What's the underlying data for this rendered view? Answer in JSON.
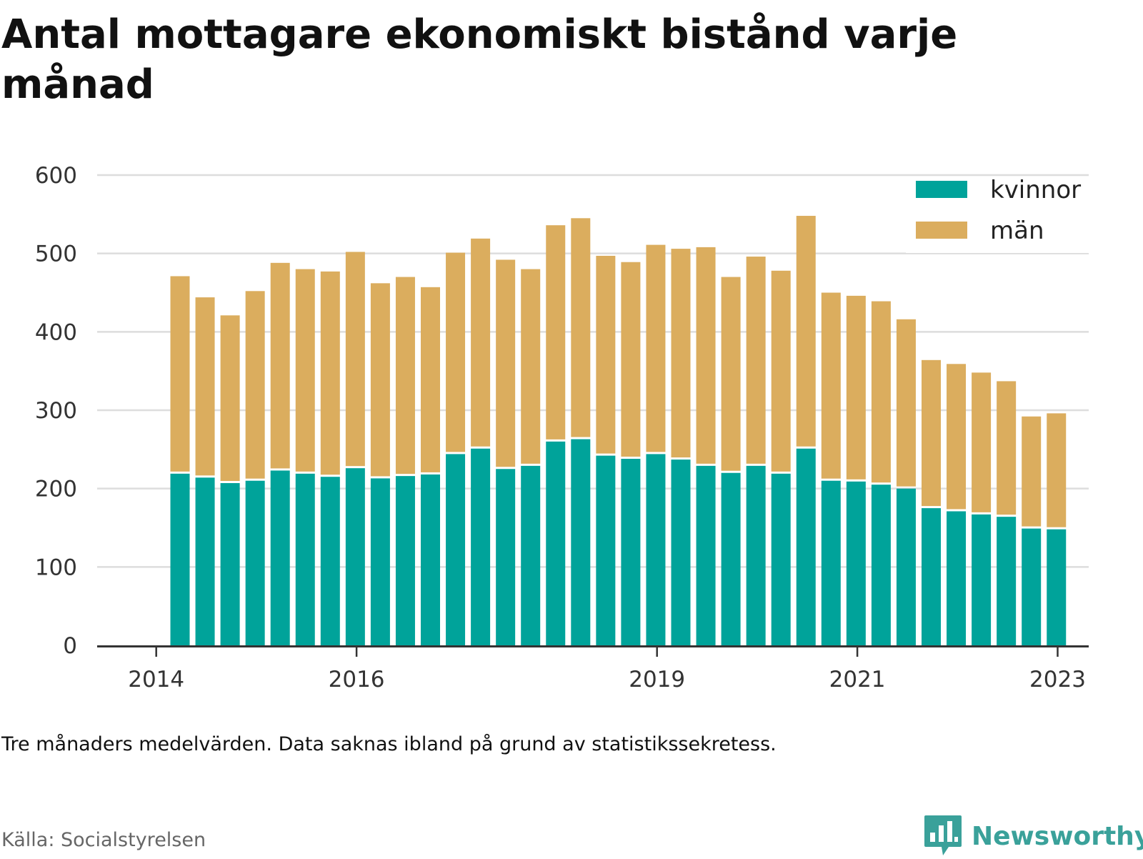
{
  "title": "Antal mottagare ekonomiskt bistånd varje månad",
  "note": "Tre månaders medelvärden. Data saknas ibland på grund av statistikssekretess.",
  "source": "Källa: Socialstyrelsen",
  "brand": {
    "name": "Newsworthy",
    "icon": "bar-chart-speech-bubble-icon",
    "color": "#3aa19a"
  },
  "colors": {
    "kvinnor": "#00a39a",
    "man": "#dbad5e",
    "grid": "#dddddd",
    "axis": "#333333"
  },
  "chart_data": {
    "type": "bar",
    "stacked": true,
    "x_tick_labels": [
      {
        "label": "2014",
        "at_bar": -0.95
      },
      {
        "label": "2016",
        "at_bar": 7.05
      },
      {
        "label": "2019",
        "at_bar": 19.05
      },
      {
        "label": "2021",
        "at_bar": 27.05
      },
      {
        "label": "2023",
        "at_bar": 35.05
      }
    ],
    "ylim": [
      0,
      600
    ],
    "yticks": [
      0,
      100,
      200,
      300,
      400,
      500,
      600
    ],
    "grid": true,
    "legend_position": "top-right",
    "series": [
      {
        "name": "kvinnor",
        "values": [
          219,
          214,
          207,
          210,
          223,
          219,
          215,
          226,
          213,
          216,
          218,
          244,
          251,
          225,
          229,
          260,
          263,
          242,
          238,
          244,
          237,
          229,
          220,
          229,
          219,
          251,
          210,
          209,
          205,
          200,
          175,
          171,
          167,
          164,
          149,
          148
        ]
      },
      {
        "name": "män",
        "values": [
          252,
          230,
          214,
          242,
          265,
          261,
          262,
          276,
          249,
          254,
          239,
          257,
          268,
          267,
          251,
          276,
          282,
          255,
          251,
          267,
          269,
          279,
          250,
          267,
          259,
          297,
          240,
          237,
          234,
          216,
          189,
          188,
          181,
          173,
          143,
          148
        ]
      }
    ]
  }
}
